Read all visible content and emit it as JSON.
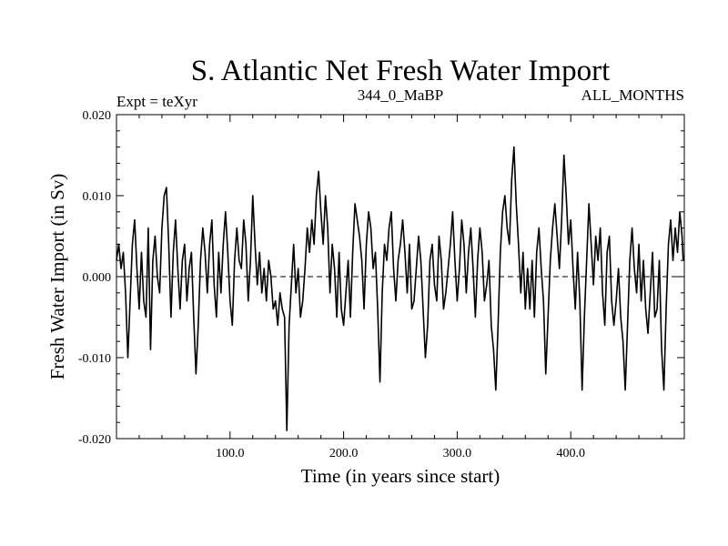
{
  "chart_data": {
    "type": "line",
    "title": "S. Atlantic Net Fresh Water Import",
    "experiment_label": "Expt = teXyr",
    "center_label": "344_0_MaBP",
    "right_label": "ALL_MONTHS",
    "xlabel": "Time (in years since start)",
    "ylabel": "Fresh Water Import (in Sv)",
    "xlim": [
      0,
      500
    ],
    "ylim": [
      -0.02,
      0.02
    ],
    "x_ticks": [
      100,
      200,
      300,
      400
    ],
    "x_tick_labels": [
      "100.0",
      "200.0",
      "300.0",
      "400.0"
    ],
    "y_ticks": [
      -0.02,
      -0.01,
      0.0,
      0.01,
      0.02
    ],
    "y_tick_labels": [
      "-0.020",
      "-0.010",
      "0.000",
      "0.010",
      "0.020"
    ],
    "zero_line": true,
    "grid": false,
    "series": [
      {
        "values_note_free": true,
        "points": [
          [
            0,
            0.002
          ],
          [
            2,
            0.004
          ],
          [
            4,
            0.001
          ],
          [
            6,
            0.003
          ],
          [
            8,
            -0.002
          ],
          [
            10,
            -0.01
          ],
          [
            12,
            -0.003
          ],
          [
            14,
            0.004
          ],
          [
            16,
            0.007
          ],
          [
            18,
            0.001
          ],
          [
            20,
            -0.004
          ],
          [
            22,
            0.003
          ],
          [
            24,
            -0.003
          ],
          [
            26,
            -0.005
          ],
          [
            28,
            0.006
          ],
          [
            30,
            -0.009
          ],
          [
            32,
            0.002
          ],
          [
            34,
            0.005
          ],
          [
            36,
            0.0
          ],
          [
            38,
            -0.002
          ],
          [
            40,
            0.006
          ],
          [
            42,
            0.01
          ],
          [
            44,
            0.011
          ],
          [
            46,
            0.004
          ],
          [
            48,
            -0.005
          ],
          [
            50,
            0.003
          ],
          [
            52,
            0.007
          ],
          [
            54,
            0.001
          ],
          [
            56,
            -0.004
          ],
          [
            58,
            0.002
          ],
          [
            60,
            0.004
          ],
          [
            62,
            -0.003
          ],
          [
            64,
            0.001
          ],
          [
            66,
            0.003
          ],
          [
            68,
            -0.005
          ],
          [
            70,
            -0.012
          ],
          [
            72,
            -0.006
          ],
          [
            74,
            0.002
          ],
          [
            76,
            0.006
          ],
          [
            78,
            0.003
          ],
          [
            80,
            -0.002
          ],
          [
            82,
            0.004
          ],
          [
            84,
            0.007
          ],
          [
            86,
            -0.001
          ],
          [
            88,
            -0.005
          ],
          [
            90,
            0.003
          ],
          [
            92,
            -0.002
          ],
          [
            94,
            0.004
          ],
          [
            96,
            0.008
          ],
          [
            98,
            0.003
          ],
          [
            100,
            -0.003
          ],
          [
            102,
            -0.006
          ],
          [
            104,
            0.002
          ],
          [
            106,
            0.006
          ],
          [
            108,
            0.002
          ],
          [
            110,
            0.001
          ],
          [
            112,
            0.007
          ],
          [
            114,
            0.004
          ],
          [
            116,
            -0.003
          ],
          [
            118,
            0.002
          ],
          [
            120,
            0.01
          ],
          [
            122,
            0.004
          ],
          [
            124,
            -0.001
          ],
          [
            126,
            0.003
          ],
          [
            128,
            -0.002
          ],
          [
            130,
            0.001
          ],
          [
            132,
            -0.003
          ],
          [
            134,
            0.002
          ],
          [
            136,
            0.0
          ],
          [
            138,
            -0.004
          ],
          [
            140,
            -0.003
          ],
          [
            142,
            -0.006
          ],
          [
            144,
            -0.002
          ],
          [
            146,
            -0.004
          ],
          [
            148,
            -0.005
          ],
          [
            150,
            -0.019
          ],
          [
            152,
            -0.006
          ],
          [
            154,
            -0.001
          ],
          [
            156,
            0.004
          ],
          [
            158,
            -0.002
          ],
          [
            160,
            0.001
          ],
          [
            162,
            -0.005
          ],
          [
            164,
            -0.003
          ],
          [
            166,
            0.001
          ],
          [
            168,
            0.006
          ],
          [
            170,
            0.003
          ],
          [
            172,
            0.007
          ],
          [
            174,
            0.004
          ],
          [
            176,
            0.01
          ],
          [
            178,
            0.013
          ],
          [
            180,
            0.008
          ],
          [
            182,
            0.004
          ],
          [
            184,
            0.01
          ],
          [
            186,
            0.006
          ],
          [
            188,
            -0.002
          ],
          [
            190,
            0.004
          ],
          [
            192,
            0.001
          ],
          [
            194,
            -0.005
          ],
          [
            196,
            0.003
          ],
          [
            198,
            -0.004
          ],
          [
            200,
            -0.006
          ],
          [
            202,
            -0.002
          ],
          [
            204,
            0.002
          ],
          [
            206,
            -0.005
          ],
          [
            208,
            0.003
          ],
          [
            210,
            0.009
          ],
          [
            212,
            0.007
          ],
          [
            214,
            0.005
          ],
          [
            216,
            0.002
          ],
          [
            218,
            -0.004
          ],
          [
            220,
            0.004
          ],
          [
            222,
            0.008
          ],
          [
            224,
            0.006
          ],
          [
            226,
            0.001
          ],
          [
            228,
            0.003
          ],
          [
            230,
            -0.004
          ],
          [
            232,
            -0.013
          ],
          [
            234,
            -0.002
          ],
          [
            236,
            0.004
          ],
          [
            238,
            0.002
          ],
          [
            240,
            0.006
          ],
          [
            242,
            0.008
          ],
          [
            244,
            0.001
          ],
          [
            246,
            -0.003
          ],
          [
            248,
            0.002
          ],
          [
            250,
            0.004
          ],
          [
            252,
            0.007
          ],
          [
            254,
            0.003
          ],
          [
            256,
            -0.002
          ],
          [
            258,
            0.004
          ],
          [
            260,
            -0.004
          ],
          [
            262,
            -0.003
          ],
          [
            264,
            0.001
          ],
          [
            266,
            0.005
          ],
          [
            268,
            0.002
          ],
          [
            270,
            -0.004
          ],
          [
            272,
            -0.01
          ],
          [
            274,
            -0.006
          ],
          [
            276,
            0.002
          ],
          [
            278,
            0.004
          ],
          [
            280,
            -0.001
          ],
          [
            282,
            -0.003
          ],
          [
            284,
            0.005
          ],
          [
            286,
            0.002
          ],
          [
            288,
            -0.004
          ],
          [
            290,
            -0.002
          ],
          [
            292,
            0.001
          ],
          [
            294,
            0.004
          ],
          [
            296,
            0.008
          ],
          [
            298,
            0.002
          ],
          [
            300,
            -0.003
          ],
          [
            302,
            0.001
          ],
          [
            304,
            0.007
          ],
          [
            306,
            0.004
          ],
          [
            308,
            -0.002
          ],
          [
            310,
            0.003
          ],
          [
            312,
            0.006
          ],
          [
            314,
            0.001
          ],
          [
            316,
            -0.005
          ],
          [
            318,
            0.002
          ],
          [
            320,
            0.006
          ],
          [
            322,
            0.003
          ],
          [
            324,
            -0.003
          ],
          [
            326,
            -0.001
          ],
          [
            328,
            0.002
          ],
          [
            330,
            -0.006
          ],
          [
            332,
            -0.009
          ],
          [
            334,
            -0.014
          ],
          [
            336,
            -0.006
          ],
          [
            338,
            0.003
          ],
          [
            340,
            0.008
          ],
          [
            342,
            0.01
          ],
          [
            344,
            0.006
          ],
          [
            346,
            0.004
          ],
          [
            348,
            0.012
          ],
          [
            350,
            0.016
          ],
          [
            352,
            0.009
          ],
          [
            354,
            0.004
          ],
          [
            356,
            -0.002
          ],
          [
            358,
            0.003
          ],
          [
            360,
            -0.004
          ],
          [
            362,
            0.001
          ],
          [
            364,
            -0.004
          ],
          [
            366,
            0.002
          ],
          [
            368,
            -0.005
          ],
          [
            370,
            0.003
          ],
          [
            372,
            0.006
          ],
          [
            374,
            0.001
          ],
          [
            376,
            -0.003
          ],
          [
            378,
            -0.012
          ],
          [
            380,
            -0.005
          ],
          [
            382,
            0.002
          ],
          [
            384,
            0.006
          ],
          [
            386,
            0.009
          ],
          [
            388,
            0.005
          ],
          [
            390,
            0.001
          ],
          [
            392,
            0.007
          ],
          [
            394,
            0.015
          ],
          [
            396,
            0.01
          ],
          [
            398,
            0.004
          ],
          [
            400,
            0.007
          ],
          [
            402,
            0.001
          ],
          [
            404,
            -0.004
          ],
          [
            406,
            0.003
          ],
          [
            408,
            -0.003
          ],
          [
            410,
            -0.014
          ],
          [
            412,
            -0.005
          ],
          [
            414,
            0.002
          ],
          [
            416,
            0.009
          ],
          [
            418,
            0.004
          ],
          [
            420,
            -0.001
          ],
          [
            422,
            0.005
          ],
          [
            424,
            0.002
          ],
          [
            426,
            0.006
          ],
          [
            428,
            -0.002
          ],
          [
            430,
            -0.006
          ],
          [
            432,
            0.003
          ],
          [
            434,
            0.005
          ],
          [
            436,
            -0.003
          ],
          [
            438,
            -0.006
          ],
          [
            440,
            -0.003
          ],
          [
            442,
            0.001
          ],
          [
            444,
            -0.005
          ],
          [
            446,
            -0.008
          ],
          [
            448,
            -0.014
          ],
          [
            450,
            -0.006
          ],
          [
            452,
            0.002
          ],
          [
            454,
            0.006
          ],
          [
            456,
            0.001
          ],
          [
            458,
            -0.002
          ],
          [
            460,
            0.004
          ],
          [
            462,
            -0.003
          ],
          [
            464,
            0.002
          ],
          [
            466,
            -0.004
          ],
          [
            468,
            -0.007
          ],
          [
            470,
            -0.002
          ],
          [
            472,
            0.003
          ],
          [
            474,
            -0.005
          ],
          [
            476,
            -0.004
          ],
          [
            478,
            0.002
          ],
          [
            480,
            -0.009
          ],
          [
            482,
            -0.014
          ],
          [
            484,
            -0.004
          ],
          [
            486,
            0.004
          ],
          [
            488,
            0.007
          ],
          [
            490,
            0.002
          ],
          [
            492,
            0.006
          ],
          [
            494,
            0.003
          ],
          [
            496,
            0.008
          ],
          [
            498,
            0.005
          ],
          [
            499,
            0.002
          ]
        ]
      }
    ]
  }
}
